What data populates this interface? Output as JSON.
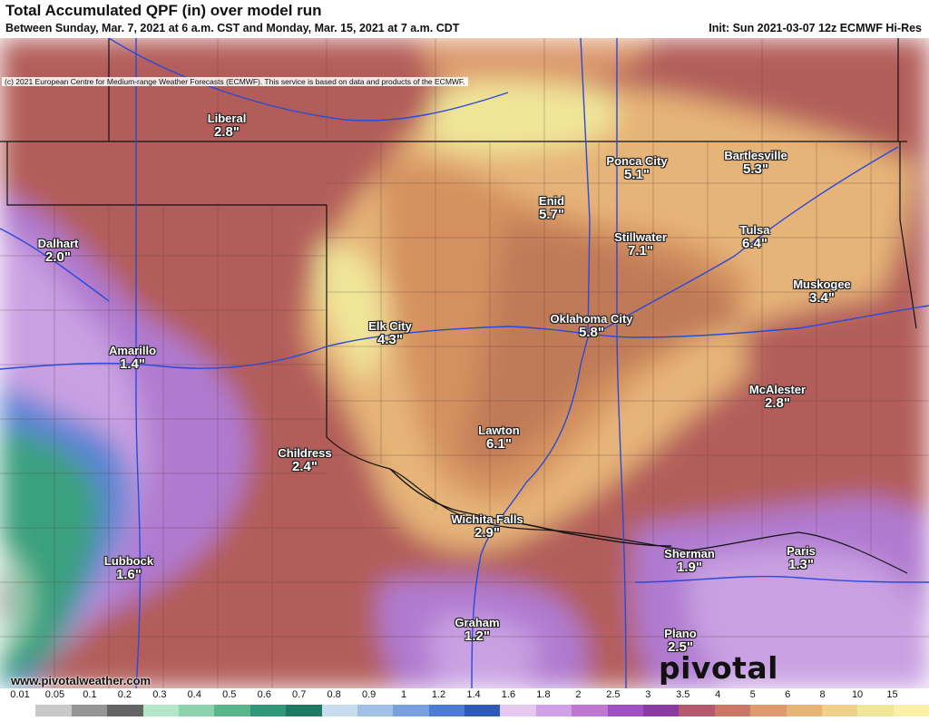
{
  "header": {
    "title": "Total Accumulated QPF (in) over model run",
    "subtitle": "Between Sunday, Mar. 7, 2021 at 6 a.m. CST and Monday, Mar. 15, 2021 at 7 a.m. CDT",
    "init": "Init: Sun 2021-03-07 12z ECMWF Hi-Res",
    "copyright": "(c) 2021 European Centre for Medium-range Weather Forecasts (ECMWF). This service is based on data and products of the ECMWF."
  },
  "cities": [
    {
      "id": "liberal",
      "name": "Liberal",
      "value": "2.8\""
    },
    {
      "id": "dalhart",
      "name": "Dalhart",
      "value": "2.0\""
    },
    {
      "id": "amarillo",
      "name": "Amarillo",
      "value": "1.4\""
    },
    {
      "id": "lubbock",
      "name": "Lubbock",
      "value": "1.6\""
    },
    {
      "id": "childress",
      "name": "Childress",
      "value": "2.4\""
    },
    {
      "id": "elk-city",
      "name": "Elk City",
      "value": "4.3\""
    },
    {
      "id": "enid",
      "name": "Enid",
      "value": "5.7\""
    },
    {
      "id": "ponca-city",
      "name": "Ponca City",
      "value": "5.1\""
    },
    {
      "id": "bartlesville",
      "name": "Bartlesville",
      "value": "5.3\""
    },
    {
      "id": "stillwater",
      "name": "Stillwater",
      "value": "7.1\""
    },
    {
      "id": "tulsa",
      "name": "Tulsa",
      "value": "6.4\""
    },
    {
      "id": "muskogee",
      "name": "Muskogee",
      "value": "3.4\""
    },
    {
      "id": "oklahoma-city",
      "name": "Oklahoma City",
      "value": "5.8\""
    },
    {
      "id": "mcalester",
      "name": "McAlester",
      "value": "2.8\""
    },
    {
      "id": "lawton",
      "name": "Lawton",
      "value": "6.1\""
    },
    {
      "id": "wichita-falls",
      "name": "Wichita Falls",
      "value": "2.9\""
    },
    {
      "id": "sherman",
      "name": "Sherman",
      "value": "1.9\""
    },
    {
      "id": "paris",
      "name": "Paris",
      "value": "1.3\""
    },
    {
      "id": "graham",
      "name": "Graham",
      "value": "1.2\""
    },
    {
      "id": "plano",
      "name": "Plano",
      "value": "2.5\""
    }
  ],
  "footer": {
    "site": "www.pivotalweather.com",
    "brand": "pivotal weather"
  },
  "legend": {
    "labels": [
      "0.01",
      "0.05",
      "0.1",
      "0.2",
      "0.3",
      "0.4",
      "0.5",
      "0.6",
      "0.7",
      "0.8",
      "0.9",
      "1",
      "1.2",
      "1.4",
      "1.6",
      "1.8",
      "2",
      "2.5",
      "3",
      "3.5",
      "4",
      "5",
      "6",
      "8",
      "10",
      "15"
    ],
    "colors": [
      "#ffffff",
      "#c8c8c8",
      "#969696",
      "#646464",
      "#b4e6c8",
      "#8cd2aa",
      "#5ab48c",
      "#329678",
      "#1e7864",
      "#c8dcf0",
      "#a0c0e6",
      "#78a0dc",
      "#4c7cd2",
      "#2c5ab4",
      "#e6c8f0",
      "#d2a0e6",
      "#be78d2",
      "#a050c0",
      "#8c3ca0",
      "#b45a6e",
      "#c87864",
      "#dc9a6e",
      "#e6b478",
      "#f0d08c",
      "#f0e69a",
      "#faf0aa"
    ]
  }
}
